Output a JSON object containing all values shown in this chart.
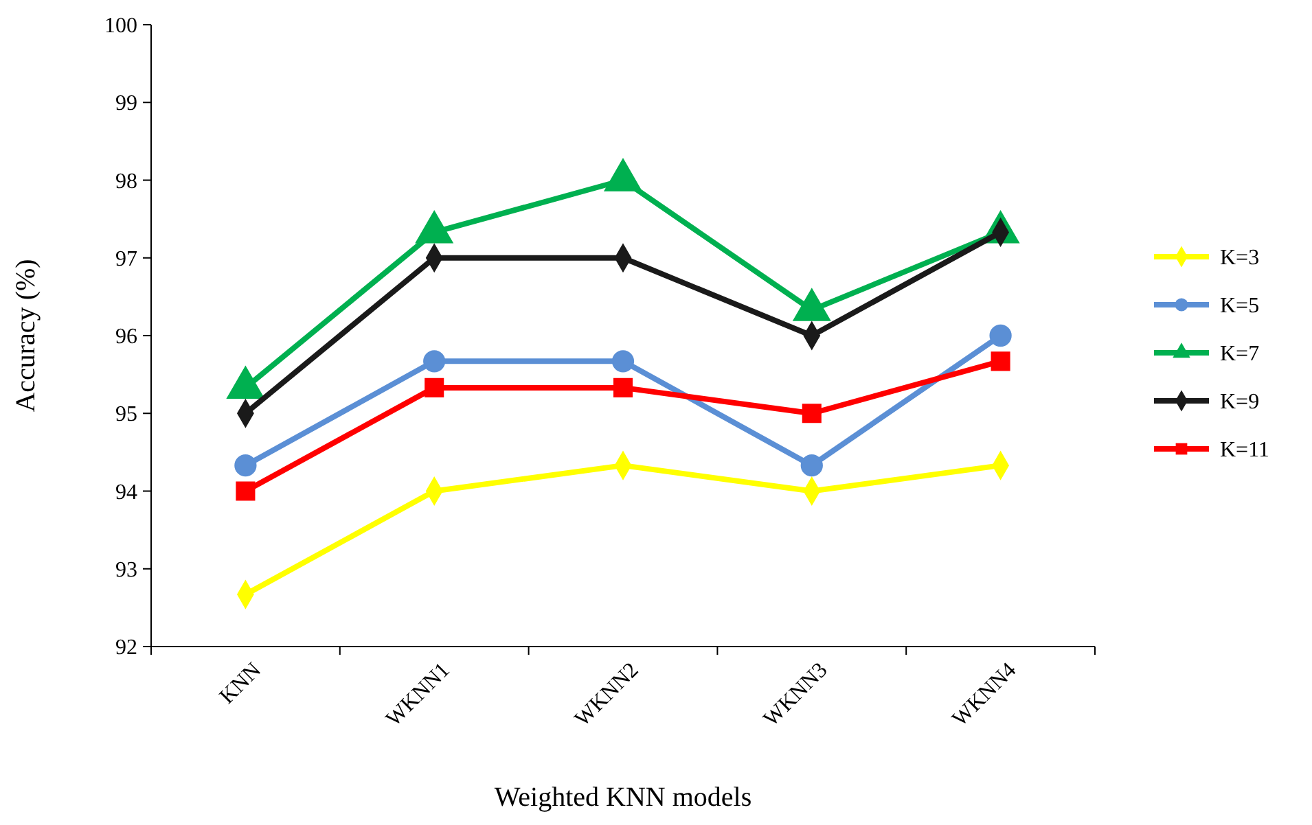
{
  "chart_data": {
    "type": "line",
    "xlabel": "Weighted KNN models",
    "ylabel": "Accuracy (%)",
    "categories": [
      "KNN",
      "WKNN1",
      "WKNN2",
      "WKNN3",
      "WKNN4"
    ],
    "series": [
      {
        "name": "K=3",
        "color": "#ffff00",
        "marker": "diamond",
        "values": [
          92.67,
          94,
          94.33,
          94,
          94.33
        ]
      },
      {
        "name": "K=5",
        "color": "#5b8fd5",
        "marker": "circle",
        "values": [
          94.33,
          95.67,
          95.67,
          94.33,
          96
        ]
      },
      {
        "name": "K=7",
        "color": "#00b050",
        "marker": "triangle",
        "values": [
          95.33,
          97.33,
          98,
          96.33,
          97.33
        ]
      },
      {
        "name": "K=9",
        "color": "#1a1a1a",
        "marker": "diamond",
        "values": [
          95,
          97,
          97,
          96,
          97.33
        ]
      },
      {
        "name": "K=11",
        "color": "#ff0000",
        "marker": "square",
        "values": [
          94,
          95.33,
          95.33,
          95,
          95.67
        ]
      }
    ],
    "ylim": [
      92,
      100
    ],
    "yticks": [
      92,
      93,
      94,
      95,
      96,
      97,
      98,
      99,
      100
    ],
    "grid": false,
    "legend": "right",
    "line_style": "solid"
  }
}
